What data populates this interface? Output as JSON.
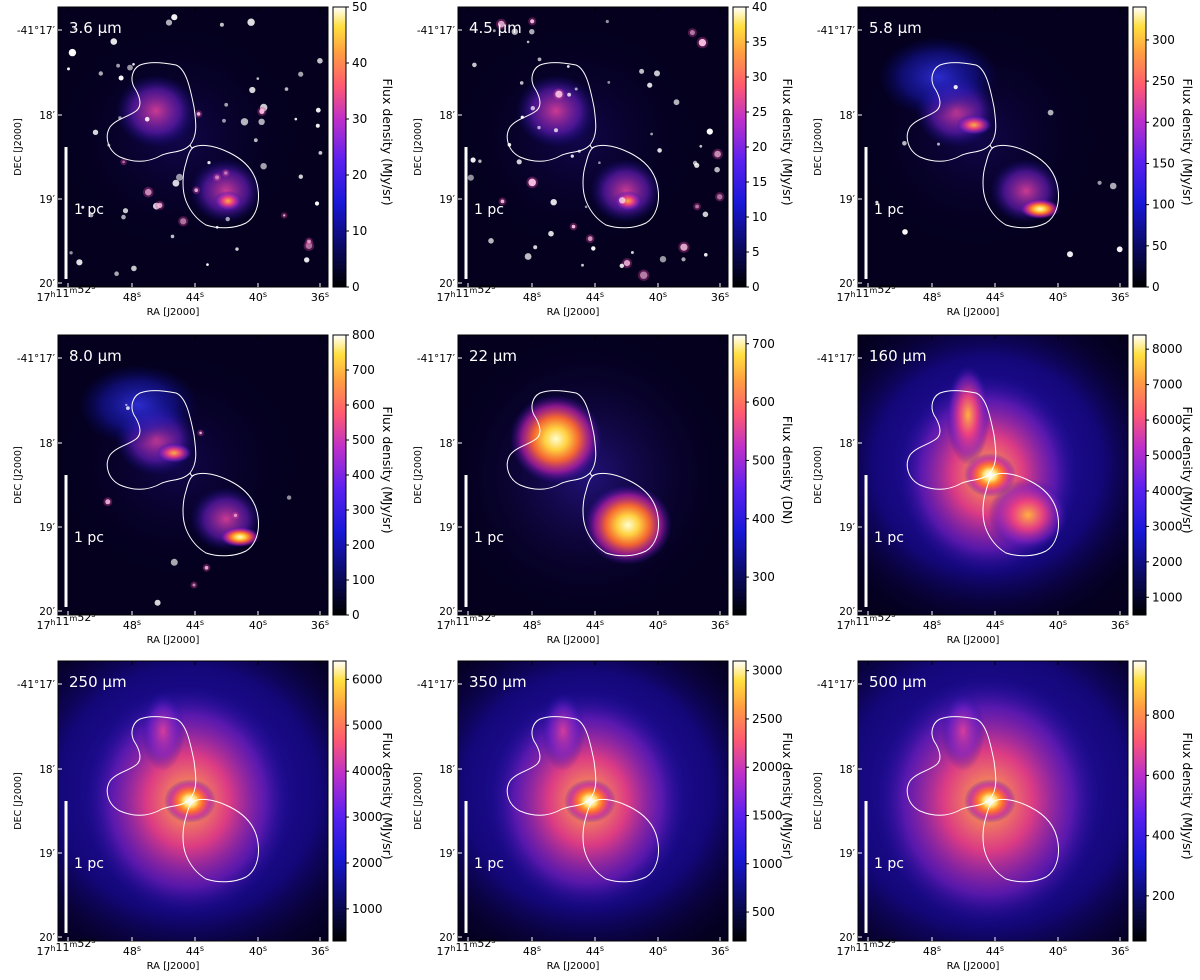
{
  "chart_data": [
    {
      "type": "heatmap",
      "title": "3.6 μm",
      "xlabel": "RA [J2000]",
      "ylabel": "DEC [J2000]",
      "colorbar_label": "Flux density (MJy/sr)",
      "colorbar_ticks": [
        0,
        10,
        20,
        30,
        40,
        50
      ],
      "clim": [
        0,
        50
      ],
      "style": "stars",
      "x_ticks": [
        "17h11m52s",
        "48s",
        "44s",
        "40s",
        "36s"
      ],
      "y_ticks": [
        "-41°17′",
        "18′",
        "19′",
        "20′"
      ],
      "scalebar": "1 pc"
    },
    {
      "type": "heatmap",
      "title": "4.5 μm",
      "xlabel": "RA [J2000]",
      "ylabel": "DEC [J2000]",
      "colorbar_label": "Flux density (MJy/sr)",
      "colorbar_ticks": [
        0,
        5,
        10,
        15,
        20,
        25,
        30,
        35,
        40
      ],
      "clim": [
        0,
        40
      ],
      "style": "stars",
      "x_ticks": [
        "17h11m52s",
        "48s",
        "44s",
        "40s",
        "36s"
      ],
      "y_ticks": [
        "-41°17′",
        "18′",
        "19′",
        "20′"
      ],
      "scalebar": "1 pc"
    },
    {
      "type": "heatmap",
      "title": "5.8 μm",
      "xlabel": "RA [J2000]",
      "ylabel": "DEC [J2000]",
      "colorbar_label": "Flux density (MJy/sr)",
      "colorbar_ticks": [
        0,
        50,
        100,
        150,
        200,
        250,
        300
      ],
      "clim": [
        0,
        340
      ],
      "style": "rings",
      "x_ticks": [
        "17h11m52s",
        "48s",
        "44s",
        "40s",
        "36s"
      ],
      "y_ticks": [
        "-41°17′",
        "18′",
        "19′",
        "20′"
      ],
      "scalebar": "1 pc"
    },
    {
      "type": "heatmap",
      "title": "8.0 μm",
      "xlabel": "RA [J2000]",
      "ylabel": "DEC [J2000]",
      "colorbar_label": "Flux density (MJy/sr)",
      "colorbar_ticks": [
        0,
        100,
        200,
        300,
        400,
        500,
        600,
        700,
        800
      ],
      "clim": [
        0,
        800
      ],
      "style": "rings",
      "x_ticks": [
        "17h11m52s",
        "48s",
        "44s",
        "40s",
        "36s"
      ],
      "y_ticks": [
        "-41°17′",
        "18′",
        "19′",
        "20′"
      ],
      "scalebar": "1 pc"
    },
    {
      "type": "heatmap",
      "title": "22 μm",
      "xlabel": "RA [J2000]",
      "ylabel": "DEC [J2000]",
      "colorbar_label": "Flux density (DN)",
      "colorbar_ticks": [
        300,
        400,
        500,
        600,
        700
      ],
      "clim": [
        235,
        715
      ],
      "style": "blobs",
      "x_ticks": [
        "17h11m52s",
        "48s",
        "44s",
        "40s",
        "36s"
      ],
      "y_ticks": [
        "-41°17′",
        "18′",
        "19′",
        "20′"
      ],
      "scalebar": "1 pc"
    },
    {
      "type": "heatmap",
      "title": "160 μm",
      "xlabel": "RA [J2000]",
      "ylabel": "DEC [J2000]",
      "colorbar_label": "Flux density (MJy/sr)",
      "colorbar_ticks": [
        1000,
        2000,
        3000,
        4000,
        5000,
        6000,
        7000,
        8000
      ],
      "clim": [
        500,
        8400
      ],
      "style": "far160",
      "x_ticks": [
        "17h11m52s",
        "48s",
        "44s",
        "40s",
        "36s"
      ],
      "y_ticks": [
        "-41°17′",
        "18′",
        "19′",
        "20′"
      ],
      "scalebar": "1 pc"
    },
    {
      "type": "heatmap",
      "title": "250 μm",
      "xlabel": "RA [J2000]",
      "ylabel": "DEC [J2000]",
      "colorbar_label": "Flux density (MJy/sr)",
      "colorbar_ticks": [
        1000,
        2000,
        3000,
        4000,
        5000,
        6000
      ],
      "clim": [
        300,
        6400
      ],
      "style": "far250",
      "x_ticks": [
        "17h11m52s",
        "48s",
        "44s",
        "40s",
        "36s"
      ],
      "y_ticks": [
        "-41°17′",
        "18′",
        "19′",
        "20′"
      ],
      "scalebar": "1 pc"
    },
    {
      "type": "heatmap",
      "title": "350 μm",
      "xlabel": "RA [J2000]",
      "ylabel": "DEC [J2000]",
      "colorbar_label": "Flux density (MJy/sr)",
      "colorbar_ticks": [
        500,
        1000,
        1500,
        2000,
        2500,
        3000
      ],
      "clim": [
        200,
        3100
      ],
      "style": "far350",
      "x_ticks": [
        "17h11m52s",
        "48s",
        "44s",
        "40s",
        "36s"
      ],
      "y_ticks": [
        "-41°17′",
        "18′",
        "19′",
        "20′"
      ],
      "scalebar": "1 pc"
    },
    {
      "type": "heatmap",
      "title": "500 μm",
      "xlabel": "RA [J2000]",
      "ylabel": "DEC [J2000]",
      "colorbar_label": "Flux density (MJy/sr)",
      "colorbar_ticks": [
        200,
        400,
        600,
        800
      ],
      "clim": [
        50,
        980
      ],
      "style": "far500",
      "x_ticks": [
        "17h11m52s",
        "48s",
        "44s",
        "40s",
        "36s"
      ],
      "y_ticks": [
        "-41°17′",
        "18′",
        "19′",
        "20′"
      ],
      "scalebar": "1 pc"
    }
  ],
  "colors": {
    "map_dark": "#04001e",
    "contour": "#ffffff",
    "star": "#ffffff"
  }
}
